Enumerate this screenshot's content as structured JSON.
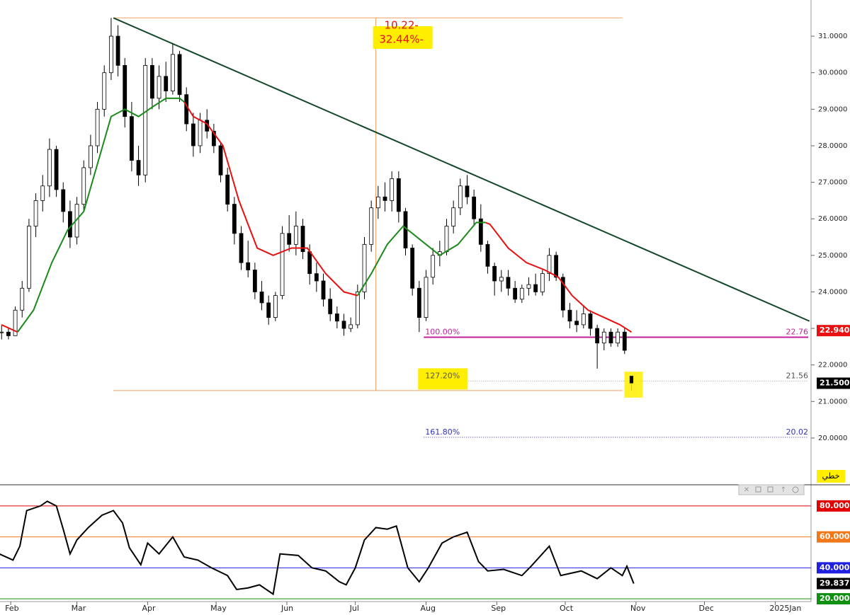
{
  "chart_data": [
    {
      "type": "candlestick",
      "xlim": [
        27.3,
        382.7
      ],
      "xticks": [
        {
          "value": 32,
          "label": "Feb"
        },
        {
          "value": 61,
          "label": "Mar"
        },
        {
          "value": 92,
          "label": "Apr"
        },
        {
          "value": 122,
          "label": "May"
        },
        {
          "value": 153,
          "label": "Jun"
        },
        {
          "value": 183,
          "label": "Jul"
        },
        {
          "value": 214,
          "label": "Aug"
        },
        {
          "value": 245,
          "label": "Sep"
        },
        {
          "value": 275,
          "label": "Oct"
        },
        {
          "value": 306,
          "label": "Nov"
        },
        {
          "value": 336,
          "label": "Dec"
        },
        {
          "value": 367,
          "label": "2025Jan"
        }
      ],
      "ylim": [
        18.72,
        31.99
      ],
      "yticks": [
        {
          "value": 20,
          "label": "20.0000"
        },
        {
          "value": 21,
          "label": "21.0000"
        },
        {
          "value": 22,
          "label": "22.0000"
        },
        {
          "value": 23,
          "label": "23.0000"
        },
        {
          "value": 24,
          "label": "24.0000"
        },
        {
          "value": 25,
          "label": "25.0000"
        },
        {
          "value": 26,
          "label": "26.0000"
        },
        {
          "value": 27,
          "label": "27.0000"
        },
        {
          "value": 28,
          "label": "28.0000"
        },
        {
          "value": 29,
          "label": "29.0000"
        },
        {
          "value": 30,
          "label": "30.0000"
        },
        {
          "value": 31,
          "label": "31.0000"
        }
      ],
      "x": [
        28,
        31,
        34,
        37,
        40,
        43,
        46,
        49,
        52,
        55,
        58,
        61,
        64,
        67,
        70,
        73,
        76,
        79,
        82,
        85,
        88,
        91,
        94,
        97,
        100,
        103,
        106,
        109,
        112,
        115,
        118,
        121,
        124,
        127,
        130,
        133,
        136,
        139,
        142,
        145,
        148,
        151,
        154,
        157,
        160,
        163,
        166,
        169,
        172,
        175,
        178,
        181,
        184,
        187,
        190,
        193,
        196,
        199,
        202,
        205,
        208,
        211,
        214,
        217,
        220,
        223,
        226,
        229,
        232,
        235,
        238,
        241,
        244,
        247,
        250,
        253,
        256,
        259,
        262,
        265,
        268,
        271,
        274,
        277,
        280,
        283,
        286,
        289,
        292,
        295,
        298,
        301,
        304
      ],
      "open": [
        22.9,
        22.9,
        22.8,
        23.5,
        24.1,
        25.8,
        26.5,
        26.9,
        27.9,
        26.8,
        26.2,
        25.5,
        26.4,
        27.4,
        28.0,
        29.0,
        30.0,
        31.0,
        30.2,
        28.8,
        27.6,
        27.2,
        30.2,
        29.3,
        29.9,
        29.5,
        30.5,
        29.4,
        28.6,
        28.0,
        28.7,
        28.4,
        28.0,
        27.2,
        26.4,
        25.6,
        24.8,
        24.6,
        24.0,
        23.7,
        23.3,
        23.9,
        25.6,
        25.3,
        25.8,
        25.1,
        24.5,
        24.3,
        23.8,
        23.4,
        23.2,
        23.0,
        23.1,
        24.0,
        25.3,
        26.3,
        26.6,
        26.5,
        27.1,
        26.2,
        25.2,
        24.1,
        23.3,
        24.4,
        25.0,
        25.1,
        25.8,
        26.3,
        26.9,
        26.6,
        26.0,
        25.3,
        24.7,
        24.3,
        24.4,
        24.1,
        23.8,
        24.1,
        24.2,
        24.0,
        24.5,
        25.0,
        24.4,
        23.5,
        23.2,
        23.1,
        23.4,
        23.0,
        22.6,
        22.9,
        22.6,
        22.9,
        21.7
      ],
      "high": [
        23.1,
        23.0,
        23.6,
        24.3,
        26.0,
        26.7,
        27.2,
        28.2,
        28.0,
        27.0,
        26.5,
        26.6,
        27.6,
        28.3,
        29.2,
        30.2,
        31.5,
        31.3,
        30.4,
        29.2,
        28.0,
        30.4,
        30.4,
        30.2,
        30.3,
        30.8,
        30.6,
        29.6,
        28.9,
        28.9,
        29.0,
        28.6,
        28.1,
        27.4,
        26.6,
        25.8,
        25.4,
        24.8,
        24.3,
        23.9,
        24.0,
        25.8,
        26.1,
        26.2,
        26.0,
        25.3,
        24.8,
        24.5,
        24.1,
        23.6,
        23.4,
        23.3,
        24.2,
        25.5,
        26.5,
        26.9,
        27.0,
        27.3,
        27.3,
        26.3,
        25.3,
        24.3,
        24.6,
        25.2,
        25.4,
        26.0,
        26.5,
        27.1,
        27.2,
        26.8,
        26.4,
        25.4,
        24.8,
        24.6,
        24.6,
        24.3,
        24.2,
        24.4,
        24.5,
        24.6,
        25.2,
        25.1,
        24.5,
        23.7,
        23.5,
        23.6,
        23.5,
        23.1,
        23.0,
        23.0,
        23.0,
        23.0,
        21.7
      ],
      "low": [
        22.7,
        22.7,
        22.8,
        23.3,
        24.0,
        25.5,
        26.2,
        26.6,
        26.6,
        25.9,
        25.2,
        25.3,
        26.2,
        27.2,
        27.8,
        28.8,
        29.8,
        29.9,
        28.5,
        27.3,
        26.9,
        27.0,
        29.0,
        29.0,
        29.2,
        29.4,
        29.2,
        28.4,
        27.7,
        27.8,
        28.2,
        27.8,
        27.0,
        26.2,
        25.3,
        24.6,
        24.4,
        23.8,
        23.5,
        23.1,
        23.2,
        23.8,
        25.1,
        25.0,
        24.9,
        24.2,
        24.0,
        23.6,
        23.2,
        23.0,
        22.8,
        22.9,
        23.0,
        23.8,
        25.1,
        26.0,
        26.2,
        26.2,
        25.9,
        25.0,
        23.9,
        22.9,
        23.2,
        24.2,
        24.7,
        25.0,
        25.6,
        26.1,
        26.4,
        25.8,
        25.1,
        24.5,
        23.9,
        24.0,
        23.9,
        23.7,
        23.7,
        23.9,
        23.9,
        23.9,
        24.3,
        24.3,
        23.3,
        23.0,
        22.9,
        23.0,
        22.8,
        21.9,
        22.4,
        22.5,
        22.5,
        22.3,
        21.3
      ],
      "close": [
        22.9,
        22.8,
        23.5,
        24.1,
        25.8,
        26.5,
        26.9,
        27.9,
        26.8,
        26.2,
        25.5,
        26.4,
        27.4,
        28.0,
        29.0,
        30.0,
        31.0,
        30.2,
        28.8,
        27.6,
        27.2,
        30.2,
        29.3,
        29.9,
        29.5,
        30.5,
        29.4,
        28.6,
        28.0,
        28.7,
        28.4,
        28.0,
        27.2,
        26.4,
        25.6,
        24.8,
        24.6,
        24.0,
        23.7,
        23.3,
        23.9,
        25.6,
        25.3,
        25.8,
        25.1,
        24.5,
        24.3,
        23.8,
        23.4,
        23.2,
        23.0,
        23.1,
        24.0,
        25.3,
        26.3,
        26.6,
        26.5,
        27.1,
        26.2,
        25.2,
        24.1,
        23.3,
        24.4,
        25.0,
        25.1,
        25.8,
        26.3,
        26.9,
        26.6,
        26.0,
        25.3,
        24.7,
        24.3,
        24.4,
        24.1,
        23.8,
        24.1,
        24.2,
        24.0,
        24.5,
        25.0,
        24.4,
        23.5,
        23.2,
        23.1,
        23.4,
        23.0,
        22.6,
        22.9,
        22.6,
        22.9,
        22.4,
        21.5
      ],
      "ma": {
        "x": [
          28,
          35,
          42,
          50,
          57,
          64,
          70,
          76,
          82,
          88,
          95,
          100,
          106,
          108,
          112,
          118,
          125,
          132,
          140,
          147,
          155,
          162,
          170,
          178,
          184,
          190,
          197,
          204,
          212,
          220,
          228,
          236,
          240,
          242,
          250,
          258,
          266,
          272,
          278,
          285,
          292,
          299,
          304
        ],
        "series": [
          {
            "color": "#e81010",
            "values": [
              23.1,
              22.9,
              null,
              null,
              null,
              null,
              null,
              null,
              null,
              null,
              null,
              null,
              null,
              29.2,
              28.8,
              28.6,
              28.0,
              26.5,
              25.2,
              25.0,
              25.2,
              25.2,
              24.5,
              24.0,
              23.9,
              null,
              null,
              null,
              null,
              null,
              null,
              null,
              25.9,
              25.85,
              25.2,
              24.8,
              24.6,
              24.4,
              23.9,
              23.5,
              23.3,
              23.1,
              22.9
            ]
          },
          {
            "color": "#1a8a1a",
            "values": [
              null,
              22.9,
              23.5,
              24.8,
              25.7,
              26.2,
              27.5,
              28.8,
              29.0,
              28.8,
              29.1,
              29.3,
              29.3,
              29.2,
              null,
              null,
              null,
              null,
              null,
              null,
              null,
              null,
              null,
              null,
              23.9,
              24.5,
              25.3,
              25.8,
              25.4,
              25.0,
              25.3,
              25.9,
              25.9,
              null,
              null,
              null,
              null,
              null,
              null,
              null,
              null,
              null,
              null
            ]
          }
        ]
      },
      "trendline": {
        "x": [
          77,
          382
        ],
        "values": [
          31.5,
          23.2
        ],
        "color": "#14472a"
      },
      "range": {
        "x": [
          77,
          300
        ],
        "x_mid": 192,
        "high": 31.5,
        "low": 21.3,
        "color": "#f0a060",
        "change": "10.22-",
        "pct": "32.44%-"
      },
      "fib": {
        "x0": 213,
        "levels": [
          {
            "label": "100.00%",
            "value": 22.76,
            "color": "#c0209a"
          },
          {
            "label": "127.20%",
            "value": 21.56,
            "color": "#999999"
          },
          {
            "label": "161.80%",
            "value": 20.02,
            "color": "#3333bb"
          }
        ]
      },
      "price_tags": [
        {
          "value": 22.94,
          "label": "22.9400",
          "color": "#e81010"
        },
        {
          "value": 21.5,
          "label": "21.5000",
          "color": "#000000"
        }
      ],
      "scale_label": "خطي"
    },
    {
      "type": "line",
      "ylim": [
        18.2,
        92.3
      ],
      "yticks": [
        {
          "value": 80,
          "label": "80.0000",
          "color": "#e00000"
        },
        {
          "value": 60,
          "label": "60.0000",
          "color": "#f07818"
        },
        {
          "value": 40,
          "label": "40.0000",
          "color": "#2020e0"
        },
        {
          "value": 20,
          "label": "20.0000",
          "color": "#109010"
        }
      ],
      "x": [
        27,
        33,
        36,
        39,
        45,
        48,
        52,
        55,
        58,
        61,
        66,
        72,
        77,
        81,
        84,
        89,
        92,
        97,
        103,
        108,
        114,
        120,
        127,
        131,
        136,
        141,
        147,
        150,
        158,
        164,
        170,
        176,
        179,
        183,
        187,
        192,
        197,
        201,
        206,
        211,
        215,
        221,
        226,
        232,
        237,
        241,
        248,
        256,
        260,
        268,
        273,
        282,
        289,
        295,
        300,
        302,
        305
      ],
      "values": [
        49,
        45,
        54,
        77,
        80,
        83,
        80,
        65,
        49,
        58,
        66,
        74,
        77,
        69,
        53,
        42,
        56,
        49,
        60,
        47,
        45,
        40,
        35,
        26,
        27,
        29,
        23,
        49,
        48,
        40,
        38,
        31,
        29,
        40,
        58,
        66,
        65,
        67,
        40,
        31,
        40,
        56,
        60,
        63,
        44,
        38,
        39,
        35,
        41,
        54,
        35,
        38,
        33,
        40,
        35,
        41,
        29.8372
      ],
      "color": "#000000"
    }
  ]
}
